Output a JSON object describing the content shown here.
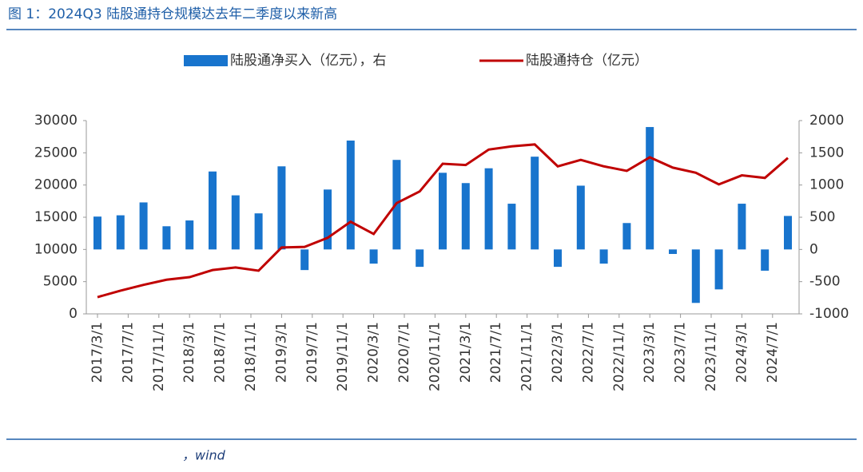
{
  "chart_data": {
    "type": "bar+line",
    "title": "图 1：2024Q3 陆股通持仓规模达去年二季度以来新高",
    "source": "，wind",
    "x": [
      "2017/3/1",
      "2017/6/1",
      "2017/9/1",
      "2017/12/1",
      "2018/3/1",
      "2018/6/1",
      "2018/9/1",
      "2018/12/1",
      "2019/3/1",
      "2019/6/1",
      "2019/9/1",
      "2019/12/1",
      "2020/3/1",
      "2020/6/1",
      "2020/9/1",
      "2020/12/1",
      "2021/3/1",
      "2021/6/1",
      "2021/9/1",
      "2021/12/1",
      "2022/3/1",
      "2022/6/1",
      "2022/9/1",
      "2022/12/1",
      "2023/3/1",
      "2023/6/1",
      "2023/9/1",
      "2023/12/1",
      "2024/3/1",
      "2024/6/1",
      "2024/9/1"
    ],
    "xticks": [
      "2017/3/1",
      "2017/7/1",
      "2017/11/1",
      "2018/3/1",
      "2018/7/1",
      "2018/11/1",
      "2019/3/1",
      "2019/7/1",
      "2019/11/1",
      "2020/3/1",
      "2020/7/1",
      "2020/11/1",
      "2021/3/1",
      "2021/7/1",
      "2021/11/1",
      "2022/3/1",
      "2022/7/1",
      "2022/11/1",
      "2023/3/1",
      "2023/7/1",
      "2023/11/1",
      "2024/3/1",
      "2024/7/1"
    ],
    "series": [
      {
        "name": "陆股通净买入（亿元），右",
        "type": "bar",
        "axis": "y2",
        "color": "#1874cd",
        "values": [
          510,
          530,
          730,
          360,
          450,
          1210,
          840,
          560,
          1290,
          -320,
          930,
          1690,
          -220,
          1390,
          -270,
          1190,
          1030,
          1260,
          710,
          1440,
          -270,
          990,
          -220,
          410,
          1900,
          -70,
          -830,
          -620,
          710,
          -330,
          520
        ]
      },
      {
        "name": "陆股通持仓（亿元）",
        "type": "line",
        "axis": "y",
        "color": "#c00000",
        "values": [
          2600,
          3600,
          4500,
          5300,
          5700,
          6800,
          7200,
          6700,
          10300,
          10400,
          11800,
          14300,
          12400,
          17200,
          19000,
          23300,
          23100,
          25500,
          26000,
          26300,
          22900,
          23900,
          22900,
          22200,
          24300,
          22700,
          21900,
          20100,
          21500,
          21100,
          24200
        ]
      }
    ],
    "ylim": [
      0,
      30000
    ],
    "yticks": [
      0,
      5000,
      10000,
      15000,
      20000,
      25000,
      30000
    ],
    "y2lim": [
      -1000,
      2000
    ],
    "y2ticks": [
      -1000,
      -500,
      0,
      500,
      1000,
      1500,
      2000
    ]
  }
}
